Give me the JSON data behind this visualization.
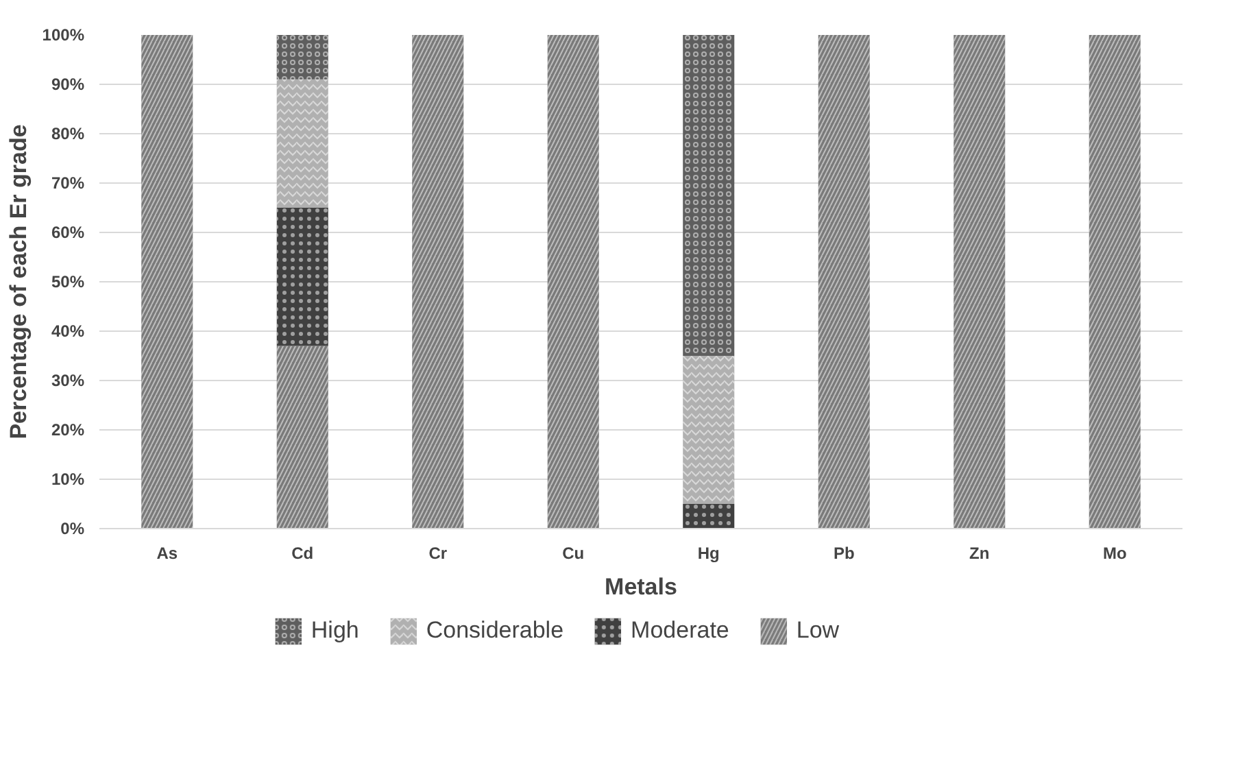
{
  "chart_data": {
    "type": "bar",
    "stacked": true,
    "xlabel": "Metals",
    "ylabel": "Percentage of each Er grade",
    "categories": [
      "As",
      "Cd",
      "Cr",
      "Cu",
      "Hg",
      "Pb",
      "Zn",
      "Mo"
    ],
    "series": [
      {
        "name": "Low",
        "color": "#7a7a7a",
        "values": [
          100,
          37,
          100,
          100,
          0,
          100,
          100,
          100
        ]
      },
      {
        "name": "Moderate",
        "color": "#404040",
        "values": [
          0,
          28,
          0,
          0,
          5,
          0,
          0,
          0
        ]
      },
      {
        "name": "Considerable",
        "color": "#b0b0b0",
        "values": [
          0,
          26,
          0,
          0,
          30,
          0,
          0,
          0
        ]
      },
      {
        "name": "High",
        "color": "#5e5e5e",
        "values": [
          0,
          9,
          0,
          0,
          65,
          0,
          0,
          0
        ]
      }
    ],
    "ylim": [
      0,
      100
    ],
    "yticks": [
      {
        "value": 0,
        "label": "0%"
      },
      {
        "value": 10,
        "label": "10%"
      },
      {
        "value": 20,
        "label": "20%"
      },
      {
        "value": 30,
        "label": "30%"
      },
      {
        "value": 40,
        "label": "40%"
      },
      {
        "value": 50,
        "label": "50%"
      },
      {
        "value": 60,
        "label": "60%"
      },
      {
        "value": 70,
        "label": "70%"
      },
      {
        "value": 80,
        "label": "80%"
      },
      {
        "value": 90,
        "label": "90%"
      },
      {
        "value": 100,
        "label": "100%"
      }
    ],
    "grid": "y",
    "legend": "bottom"
  }
}
